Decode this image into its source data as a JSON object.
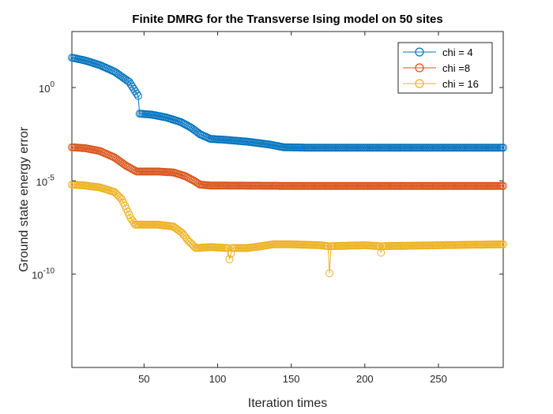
{
  "chart_data": {
    "type": "line",
    "title": "Finite DMRG for the Transverse Ising model on 50 sites",
    "xlabel": "Iteration times",
    "ylabel": "Ground state energy error",
    "xlim": [
      1,
      294
    ],
    "ylim_log10": [
      -15,
      3
    ],
    "yscale": "log",
    "marker": "circle",
    "grid": false,
    "legend_position": "top-right",
    "xticks": [
      50,
      100,
      150,
      200,
      250
    ],
    "yticks": [
      {
        "base": "10",
        "exp": "0",
        "log10": 0
      },
      {
        "base": "10",
        "exp": "-5",
        "log10": -5
      },
      {
        "base": "10",
        "exp": "-10",
        "log10": -10
      }
    ],
    "series": [
      {
        "name": "chi = 4",
        "color": "#0072BD",
        "log10_points": [
          [
            1,
            1.6
          ],
          [
            10,
            1.45
          ],
          [
            20,
            1.2
          ],
          [
            30,
            0.85
          ],
          [
            40,
            0.3
          ],
          [
            44,
            -0.2
          ],
          [
            46,
            -0.45
          ],
          [
            47,
            -1.4
          ],
          [
            55,
            -1.45
          ],
          [
            65,
            -1.6
          ],
          [
            75,
            -1.85
          ],
          [
            82,
            -2.15
          ],
          [
            88,
            -2.5
          ],
          [
            95,
            -2.75
          ],
          [
            105,
            -2.8
          ],
          [
            120,
            -2.9
          ],
          [
            135,
            -3.05
          ],
          [
            145,
            -3.2
          ],
          [
            160,
            -3.22
          ],
          [
            200,
            -3.22
          ],
          [
            250,
            -3.22
          ],
          [
            294,
            -3.22
          ]
        ]
      },
      {
        "name": "chi =8",
        "color": "#D95319",
        "log10_points": [
          [
            1,
            -3.2
          ],
          [
            10,
            -3.25
          ],
          [
            20,
            -3.4
          ],
          [
            30,
            -3.75
          ],
          [
            38,
            -4.2
          ],
          [
            45,
            -4.5
          ],
          [
            60,
            -4.5
          ],
          [
            70,
            -4.55
          ],
          [
            78,
            -4.75
          ],
          [
            84,
            -5.0
          ],
          [
            88,
            -5.2
          ],
          [
            95,
            -5.25
          ],
          [
            150,
            -5.27
          ],
          [
            200,
            -5.27
          ],
          [
            250,
            -5.27
          ],
          [
            294,
            -5.27
          ]
        ]
      },
      {
        "name": "chi = 16",
        "color": "#EDB120",
        "log10_points": [
          [
            1,
            -5.2
          ],
          [
            10,
            -5.25
          ],
          [
            20,
            -5.35
          ],
          [
            30,
            -5.6
          ],
          [
            35,
            -6.0
          ],
          [
            38,
            -6.5
          ],
          [
            41,
            -7.0
          ],
          [
            44,
            -7.35
          ],
          [
            60,
            -7.35
          ],
          [
            70,
            -7.45
          ],
          [
            76,
            -7.8
          ],
          [
            80,
            -8.2
          ],
          [
            85,
            -8.6
          ],
          [
            95,
            -8.55
          ],
          [
            107,
            -8.6
          ],
          [
            108,
            -9.2
          ],
          [
            110,
            -8.6
          ],
          [
            120,
            -8.6
          ],
          [
            125,
            -8.55
          ],
          [
            138,
            -8.4
          ],
          [
            150,
            -8.4
          ],
          [
            170,
            -8.45
          ],
          [
            175,
            -8.5
          ],
          [
            176,
            -9.95
          ],
          [
            177,
            -8.5
          ],
          [
            200,
            -8.45
          ],
          [
            210,
            -8.5
          ],
          [
            211,
            -8.85
          ],
          [
            212,
            -8.5
          ],
          [
            250,
            -8.45
          ],
          [
            294,
            -8.4
          ]
        ]
      }
    ]
  }
}
